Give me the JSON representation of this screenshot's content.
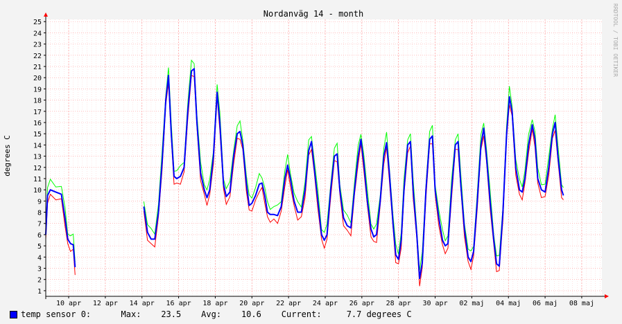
{
  "colors": {
    "background": "#f3f3f3",
    "plot_background": "#ffffff",
    "grid": "#ff9999",
    "axis": "#000000",
    "arrow": "#ff0000",
    "watermark": "#aaaaaa",
    "series_avg": "#0000ff",
    "series_min": "#ff0000",
    "series_max": "#00ff00"
  },
  "watermark": "RRDTOOL / TOBI OETIKER",
  "legend": {
    "swatch_color": "#0000ff",
    "label": "temp sensor 0:",
    "max_label": "Max:",
    "max_value": "23.5",
    "avg_label": "Avg:",
    "avg_value": "10.6",
    "current_label": "Current:",
    "current_value": "7.7 degrees C"
  },
  "chart_data": {
    "type": "line",
    "title": "Nordanväg 14 - month",
    "xlabel": "",
    "ylabel": "degrees C",
    "ylim": [
      0.5,
      25.2
    ],
    "xlim": [
      8.75,
      39.1
    ],
    "y_ticks": [
      1,
      2,
      3,
      4,
      5,
      6,
      7,
      8,
      9,
      10,
      11,
      12,
      13,
      14,
      15,
      16,
      17,
      18,
      19,
      20,
      21,
      22,
      23,
      24,
      25
    ],
    "x_ticks": [
      {
        "x": 10,
        "label": "10 apr"
      },
      {
        "x": 12,
        "label": "12 apr"
      },
      {
        "x": 14,
        "label": "14 apr"
      },
      {
        "x": 16,
        "label": "16 apr"
      },
      {
        "x": 18,
        "label": "18 apr"
      },
      {
        "x": 20,
        "label": "20 apr"
      },
      {
        "x": 22,
        "label": "22 apr"
      },
      {
        "x": 24,
        "label": "24 apr"
      },
      {
        "x": 26,
        "label": "26 apr"
      },
      {
        "x": 28,
        "label": "28 apr"
      },
      {
        "x": 30,
        "label": "30 apr"
      },
      {
        "x": 32,
        "label": "02 maj"
      },
      {
        "x": 34,
        "label": "04 maj"
      },
      {
        "x": 36,
        "label": "06 maj"
      },
      {
        "x": 38,
        "label": "08 maj"
      }
    ],
    "x_unit_note": "day of April; May dates continue past 30",
    "grid": true,
    "daily_cycle": {
      "description": "Per-day min/max of the temperature curve read from the plot (x = day of April, fractional days)",
      "segments": [
        {
          "from": 8.75,
          "to": 10.45,
          "points": [
            [
              8.75,
              6.0
            ],
            [
              8.85,
              9.5
            ],
            [
              9.0,
              10.0
            ],
            [
              9.3,
              9.8
            ],
            [
              9.6,
              9.6
            ],
            [
              9.8,
              7.5
            ],
            [
              9.95,
              5.6
            ],
            [
              10.1,
              5.2
            ],
            [
              10.25,
              5.1
            ],
            [
              10.35,
              3.1
            ]
          ]
        },
        {
          "from": 14.1,
          "to": 39.1,
          "points": [
            [
              14.1,
              8.5
            ],
            [
              14.3,
              6.2
            ],
            [
              14.5,
              5.6
            ],
            [
              14.7,
              5.6
            ],
            [
              14.9,
              8.0
            ],
            [
              15.1,
              12.5
            ],
            [
              15.3,
              18.0
            ],
            [
              15.45,
              20.2
            ],
            [
              15.6,
              15.0
            ],
            [
              15.75,
              11.2
            ],
            [
              15.9,
              11.0
            ],
            [
              16.1,
              11.2
            ],
            [
              16.3,
              12.0
            ],
            [
              16.5,
              17.0
            ],
            [
              16.7,
              20.6
            ],
            [
              16.85,
              20.8
            ],
            [
              17.0,
              16.0
            ],
            [
              17.2,
              11.5
            ],
            [
              17.4,
              10.0
            ],
            [
              17.55,
              9.3
            ],
            [
              17.7,
              10.0
            ],
            [
              17.9,
              13.0
            ],
            [
              18.1,
              18.7
            ],
            [
              18.25,
              16.0
            ],
            [
              18.45,
              10.5
            ],
            [
              18.6,
              9.4
            ],
            [
              18.8,
              9.8
            ],
            [
              19.0,
              13.0
            ],
            [
              19.2,
              15.0
            ],
            [
              19.35,
              15.2
            ],
            [
              19.5,
              14.0
            ],
            [
              19.7,
              10.5
            ],
            [
              19.85,
              8.6
            ],
            [
              20.0,
              8.8
            ],
            [
              20.2,
              9.5
            ],
            [
              20.4,
              10.5
            ],
            [
              20.55,
              10.6
            ],
            [
              20.7,
              9.5
            ],
            [
              20.85,
              8.0
            ],
            [
              21.0,
              7.8
            ],
            [
              21.2,
              7.8
            ],
            [
              21.4,
              7.7
            ],
            [
              21.6,
              8.5
            ],
            [
              21.8,
              11.0
            ],
            [
              21.95,
              12.2
            ],
            [
              22.1,
              11.0
            ],
            [
              22.3,
              9.0
            ],
            [
              22.5,
              8.0
            ],
            [
              22.7,
              8.0
            ],
            [
              22.9,
              10.0
            ],
            [
              23.1,
              13.5
            ],
            [
              23.25,
              14.3
            ],
            [
              23.4,
              12.0
            ],
            [
              23.6,
              9.0
            ],
            [
              23.8,
              6.0
            ],
            [
              23.95,
              5.5
            ],
            [
              24.1,
              6.0
            ],
            [
              24.3,
              10.0
            ],
            [
              24.5,
              13.0
            ],
            [
              24.65,
              13.2
            ],
            [
              24.8,
              10.0
            ],
            [
              25.0,
              7.5
            ],
            [
              25.2,
              6.8
            ],
            [
              25.4,
              6.6
            ],
            [
              25.6,
              10.0
            ],
            [
              25.8,
              13.0
            ],
            [
              25.95,
              14.5
            ],
            [
              26.1,
              12.5
            ],
            [
              26.3,
              9.0
            ],
            [
              26.5,
              6.5
            ],
            [
              26.65,
              5.8
            ],
            [
              26.8,
              6.0
            ],
            [
              27.0,
              9.0
            ],
            [
              27.2,
              13.0
            ],
            [
              27.35,
              14.2
            ],
            [
              27.5,
              11.5
            ],
            [
              27.7,
              7.0
            ],
            [
              27.85,
              4.2
            ],
            [
              28.0,
              3.8
            ],
            [
              28.15,
              5.5
            ],
            [
              28.3,
              10.0
            ],
            [
              28.5,
              14.0
            ],
            [
              28.65,
              14.3
            ],
            [
              28.8,
              10.0
            ],
            [
              29.0,
              6.0
            ],
            [
              29.15,
              2.1
            ],
            [
              29.3,
              3.5
            ],
            [
              29.5,
              10.0
            ],
            [
              29.7,
              14.5
            ],
            [
              29.85,
              14.8
            ],
            [
              30.0,
              10.0
            ],
            [
              30.2,
              7.5
            ],
            [
              30.4,
              5.5
            ],
            [
              30.55,
              5.0
            ],
            [
              30.7,
              5.2
            ],
            [
              30.9,
              10.0
            ],
            [
              31.1,
              14.0
            ],
            [
              31.25,
              14.3
            ],
            [
              31.4,
              10.5
            ],
            [
              31.6,
              6.5
            ],
            [
              31.8,
              4.0
            ],
            [
              31.95,
              3.6
            ],
            [
              32.1,
              4.5
            ],
            [
              32.3,
              9.0
            ],
            [
              32.5,
              14.0
            ],
            [
              32.65,
              15.5
            ],
            [
              32.8,
              13.0
            ],
            [
              33.0,
              9.0
            ],
            [
              33.2,
              5.5
            ],
            [
              33.35,
              3.4
            ],
            [
              33.5,
              3.2
            ],
            [
              33.7,
              8.0
            ],
            [
              33.9,
              15.0
            ],
            [
              34.05,
              18.3
            ],
            [
              34.2,
              17.0
            ],
            [
              34.4,
              12.0
            ],
            [
              34.6,
              10.0
            ],
            [
              34.75,
              9.8
            ],
            [
              34.9,
              11.0
            ],
            [
              35.1,
              14.0
            ],
            [
              35.3,
              15.8
            ],
            [
              35.45,
              14.5
            ],
            [
              35.6,
              11.0
            ],
            [
              35.8,
              10.0
            ],
            [
              36.0,
              9.8
            ],
            [
              36.2,
              12.0
            ],
            [
              36.4,
              15.0
            ],
            [
              36.55,
              16.0
            ],
            [
              36.7,
              13.0
            ],
            [
              36.9,
              10.0
            ],
            [
              37.0,
              9.5
            ]
          ]
        }
      ]
    },
    "series": [
      {
        "name": "temp sensor 0",
        "color": "#0000ff",
        "role": "average"
      }
    ]
  }
}
